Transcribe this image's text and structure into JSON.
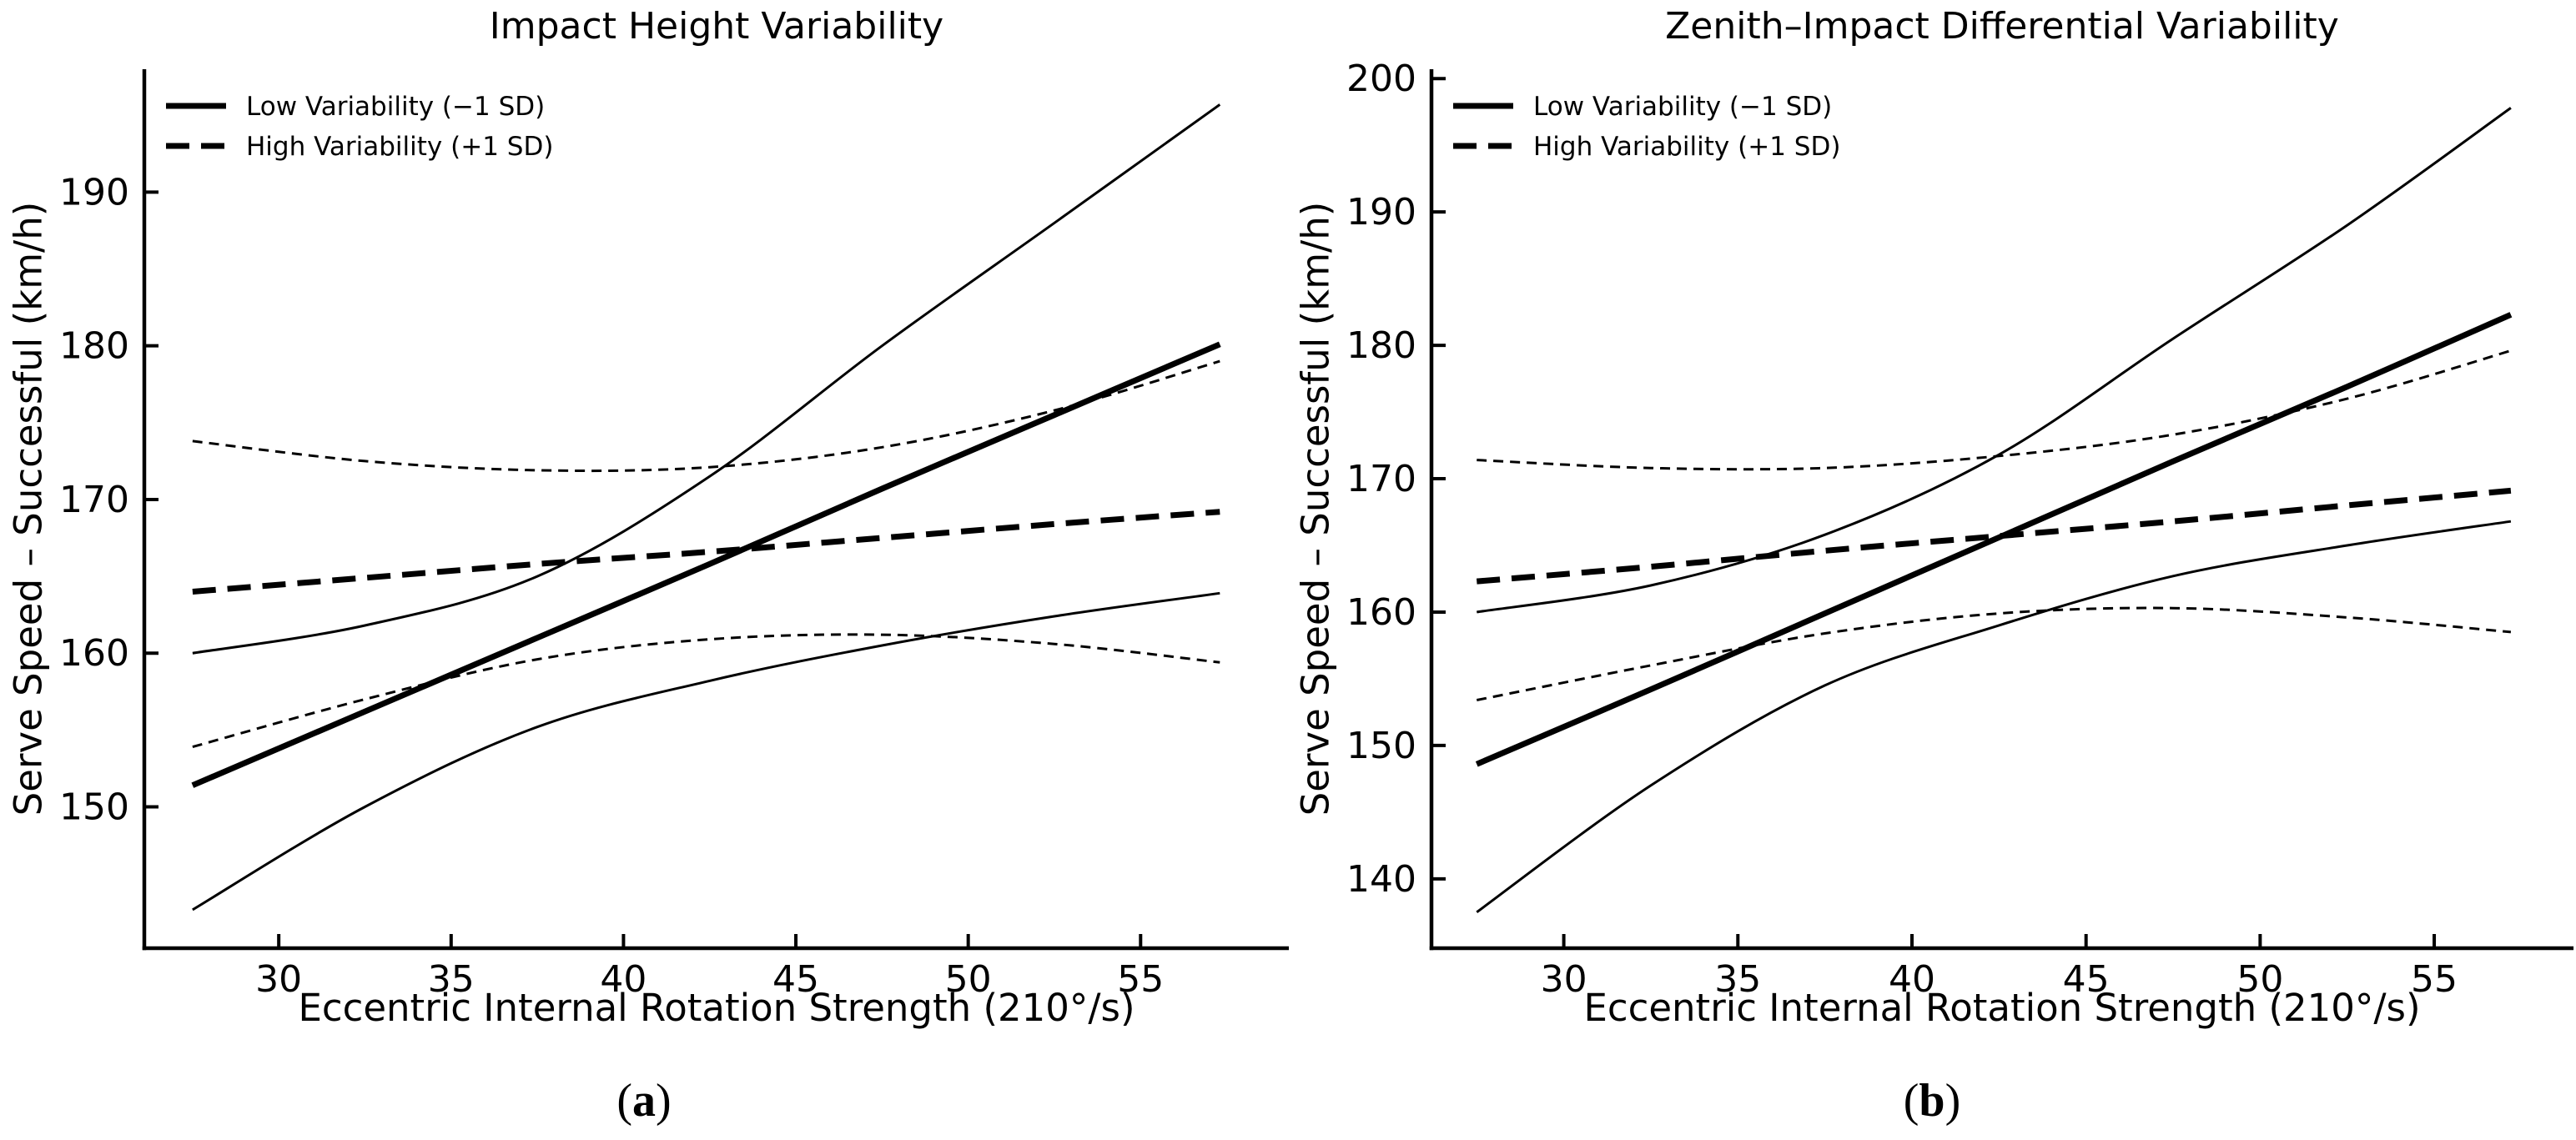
{
  "figure": {
    "background": "#ffffff",
    "line_color": "#000000",
    "captions": [
      {
        "open": "(",
        "label": "a",
        "close": ")"
      },
      {
        "open": "(",
        "label": "b",
        "close": ")"
      }
    ]
  },
  "chart_data": [
    {
      "type": "line",
      "title": "Impact Height Variability",
      "xlabel": "Eccentric Internal Rotation Strength (210°/s)",
      "ylabel": "Serve Speed – Successful (km/h)",
      "xlim": [
        26.1,
        59.3
      ],
      "ylim": [
        140.8,
        198.0
      ],
      "xticks": [
        30,
        35,
        40,
        45,
        50,
        55
      ],
      "yticks": [
        150,
        160,
        170,
        180,
        190
      ],
      "grid": false,
      "legend_position": "upper left",
      "legend": [
        {
          "label": "Low Variability (−1 SD)",
          "style": "solid"
        },
        {
          "label": "High Variability (+1 SD)",
          "style": "dashed"
        }
      ],
      "x": [
        27.5,
        32.5,
        37.5,
        42.5,
        47.5,
        52.5,
        57.3
      ],
      "series": [
        {
          "name": "Low Variability lower CI",
          "style": "solid",
          "weight": "thin",
          "values": [
            143.3,
            150.0,
            155.2,
            158.2,
            160.5,
            162.4,
            163.9
          ]
        },
        {
          "name": "Low Variability upper CI",
          "style": "solid",
          "weight": "thin",
          "values": [
            160.0,
            161.8,
            165.0,
            171.5,
            180.0,
            188.0,
            195.7
          ]
        },
        {
          "name": "High Variability lower CI",
          "style": "dashed",
          "weight": "thin",
          "values": [
            153.9,
            157.0,
            159.6,
            160.9,
            161.2,
            160.6,
            159.4
          ]
        },
        {
          "name": "High Variability upper CI",
          "style": "dashed",
          "weight": "thin",
          "values": [
            173.8,
            172.5,
            171.9,
            172.1,
            173.4,
            175.8,
            179.0
          ]
        },
        {
          "name": "High Variability (+1 SD)",
          "style": "dashed",
          "weight": "thick",
          "values": [
            164.0,
            164.9,
            165.8,
            166.6,
            167.5,
            168.4,
            169.2
          ]
        },
        {
          "name": "Low Variability (−1 SD)",
          "style": "solid",
          "weight": "thick",
          "values": [
            151.4,
            156.2,
            161.0,
            165.8,
            170.7,
            175.5,
            180.1
          ]
        }
      ]
    },
    {
      "type": "line",
      "title": "Zenith–Impact Differential Variability",
      "xlabel": "Eccentric Internal Rotation Strength (210°/s)",
      "ylabel": "Serve Speed – Successful (km/h)",
      "xlim": [
        26.2,
        59.0
      ],
      "ylim": [
        134.8,
        200.7
      ],
      "xticks": [
        30,
        35,
        40,
        45,
        50,
        55
      ],
      "yticks": [
        140,
        150,
        160,
        170,
        180,
        190,
        200
      ],
      "grid": false,
      "legend_position": "upper left",
      "legend": [
        {
          "label": "Low Variability (−1 SD)",
          "style": "solid"
        },
        {
          "label": "High Variability (+1 SD)",
          "style": "dashed"
        }
      ],
      "x": [
        27.5,
        32.5,
        37.5,
        42.5,
        47.5,
        52.5,
        57.2
      ],
      "series": [
        {
          "name": "Low Variability lower CI",
          "style": "solid",
          "weight": "thin",
          "values": [
            137.5,
            147.0,
            154.5,
            159.0,
            162.7,
            165.0,
            166.8
          ]
        },
        {
          "name": "Low Variability upper CI",
          "style": "solid",
          "weight": "thin",
          "values": [
            160.0,
            162.0,
            165.8,
            171.8,
            180.5,
            189.0,
            197.8
          ]
        },
        {
          "name": "High Variability lower CI",
          "style": "dashed",
          "weight": "thin",
          "values": [
            153.4,
            156.0,
            158.4,
            159.9,
            160.3,
            159.6,
            158.5
          ]
        },
        {
          "name": "High Variability upper CI",
          "style": "dashed",
          "weight": "thin",
          "values": [
            171.4,
            170.8,
            170.8,
            171.7,
            173.3,
            176.0,
            179.6
          ]
        },
        {
          "name": "High Variability (+1 SD)",
          "style": "dashed",
          "weight": "thick",
          "values": [
            162.3,
            163.4,
            164.6,
            165.7,
            166.8,
            168.0,
            169.1
          ]
        },
        {
          "name": "Low Variability (−1 SD)",
          "style": "solid",
          "weight": "thick",
          "values": [
            148.6,
            154.2,
            159.9,
            165.6,
            171.3,
            176.9,
            182.3
          ]
        }
      ]
    }
  ]
}
